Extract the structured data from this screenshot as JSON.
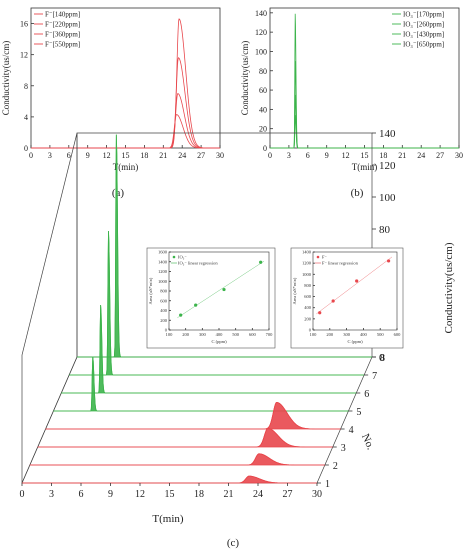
{
  "chart_data": [
    {
      "id": "a",
      "type": "line",
      "caption": "(a)",
      "xlabel": "T(min)",
      "ylabel": "Conductivity(us/cm)",
      "xlim": [
        0,
        30
      ],
      "ylim": [
        0,
        18
      ],
      "xticks": [
        "0",
        "3",
        "6",
        "9",
        "12",
        "15",
        "18",
        "21",
        "24",
        "27",
        "30"
      ],
      "yticks": [
        "0",
        "4",
        "8",
        "12",
        "16"
      ],
      "legend_position": "top-left",
      "color": "#e8474c",
      "series": [
        {
          "name": "F⁻[140ppm]",
          "peak_x": 23.1,
          "peak_y": 4.3
        },
        {
          "name": "F⁻[220ppm]",
          "peak_x": 23.3,
          "peak_y": 7.0
        },
        {
          "name": "F⁻[360ppm]",
          "peak_x": 23.4,
          "peak_y": 11.6
        },
        {
          "name": "F⁻[550ppm]",
          "peak_x": 23.5,
          "peak_y": 16.6
        }
      ]
    },
    {
      "id": "b",
      "type": "line",
      "caption": "(b)",
      "xlabel": "T(min)",
      "ylabel": "Conductivity(us/cm)",
      "xlim": [
        0,
        30
      ],
      "ylim": [
        0,
        145
      ],
      "xticks": [
        "0",
        "3",
        "6",
        "9",
        "12",
        "15",
        "18",
        "21",
        "24",
        "27",
        "30"
      ],
      "yticks": [
        "0",
        "20",
        "40",
        "60",
        "80",
        "100",
        "120",
        "140"
      ],
      "legend_position": "top-right",
      "color": "#3cb44b",
      "series": [
        {
          "name": "IO₃⁻[170ppm]",
          "peak_x": 4.0,
          "peak_y": 34
        },
        {
          "name": "IO₃⁻[260ppm]",
          "peak_x": 4.0,
          "peak_y": 55
        },
        {
          "name": "IO₃⁻[430ppm]",
          "peak_x": 4.0,
          "peak_y": 90
        },
        {
          "name": "IO₃⁻[650ppm]",
          "peak_x": 4.0,
          "peak_y": 139
        }
      ]
    },
    {
      "id": "c",
      "type": "line",
      "caption": "(c)",
      "xlabel": "T(min)",
      "zlabel": "No.",
      "ylabel": "Conductivity(us/cm)",
      "xlim": [
        0,
        30
      ],
      "ylim": [
        0,
        140
      ],
      "xticks": [
        "0",
        "3",
        "6",
        "9",
        "12",
        "15",
        "18",
        "21",
        "24",
        "27",
        "30"
      ],
      "yticks": [
        "0",
        "20",
        "40",
        "60",
        "80",
        "100",
        "120",
        "140"
      ],
      "zticks": [
        "1",
        "2",
        "3",
        "4",
        "5",
        "6",
        "7",
        "8"
      ],
      "traces": [
        {
          "no": 1,
          "ion": "F",
          "peak_x": 23.1,
          "peak_y": 4.3
        },
        {
          "no": 2,
          "ion": "F",
          "peak_x": 23.3,
          "peak_y": 7.0
        },
        {
          "no": 3,
          "ion": "F",
          "peak_x": 23.4,
          "peak_y": 11.6
        },
        {
          "no": 4,
          "ion": "F",
          "peak_x": 23.5,
          "peak_y": 16.6
        },
        {
          "no": 5,
          "ion": "IO3",
          "peak_x": 4.0,
          "peak_y": 34
        },
        {
          "no": 6,
          "ion": "IO3",
          "peak_x": 4.0,
          "peak_y": 55
        },
        {
          "no": 7,
          "ion": "IO3",
          "peak_x": 4.0,
          "peak_y": 90
        },
        {
          "no": 8,
          "ion": "IO3",
          "peak_x": 4.0,
          "peak_y": 139
        }
      ],
      "insets": [
        {
          "id": "io3",
          "type": "scatter",
          "xlabel": "C (ppm)",
          "ylabel": "Area (uS*min)",
          "xlim": [
            100,
            700
          ],
          "ylim": [
            0,
            1600
          ],
          "xticks": [
            "100",
            "200",
            "300",
            "400",
            "500",
            "600",
            "700"
          ],
          "yticks": [
            "0",
            "200",
            "400",
            "600",
            "800",
            "1000",
            "1200",
            "1400",
            "1600"
          ],
          "legend": [
            "IO₃⁻",
            "IO₃⁻ linear regression"
          ],
          "color": "#3cb44b",
          "points": [
            [
              170,
              305
            ],
            [
              260,
              510
            ],
            [
              430,
              830
            ],
            [
              650,
              1390
            ]
          ]
        },
        {
          "id": "f",
          "type": "scatter",
          "xlabel": "C (ppm)",
          "ylabel": "Area (uS*min)",
          "xlim": [
            100,
            600
          ],
          "ylim": [
            0,
            1400
          ],
          "xticks": [
            "100",
            "200",
            "300",
            "400",
            "500",
            "600"
          ],
          "yticks": [
            "0",
            "200",
            "400",
            "600",
            "800",
            "1000",
            "1200",
            "1400"
          ],
          "legend": [
            "F⁻",
            "F⁻ linear regression"
          ],
          "color": "#e8474c",
          "points": [
            [
              140,
              310
            ],
            [
              220,
              520
            ],
            [
              360,
              880
            ],
            [
              550,
              1240
            ]
          ]
        }
      ]
    }
  ]
}
